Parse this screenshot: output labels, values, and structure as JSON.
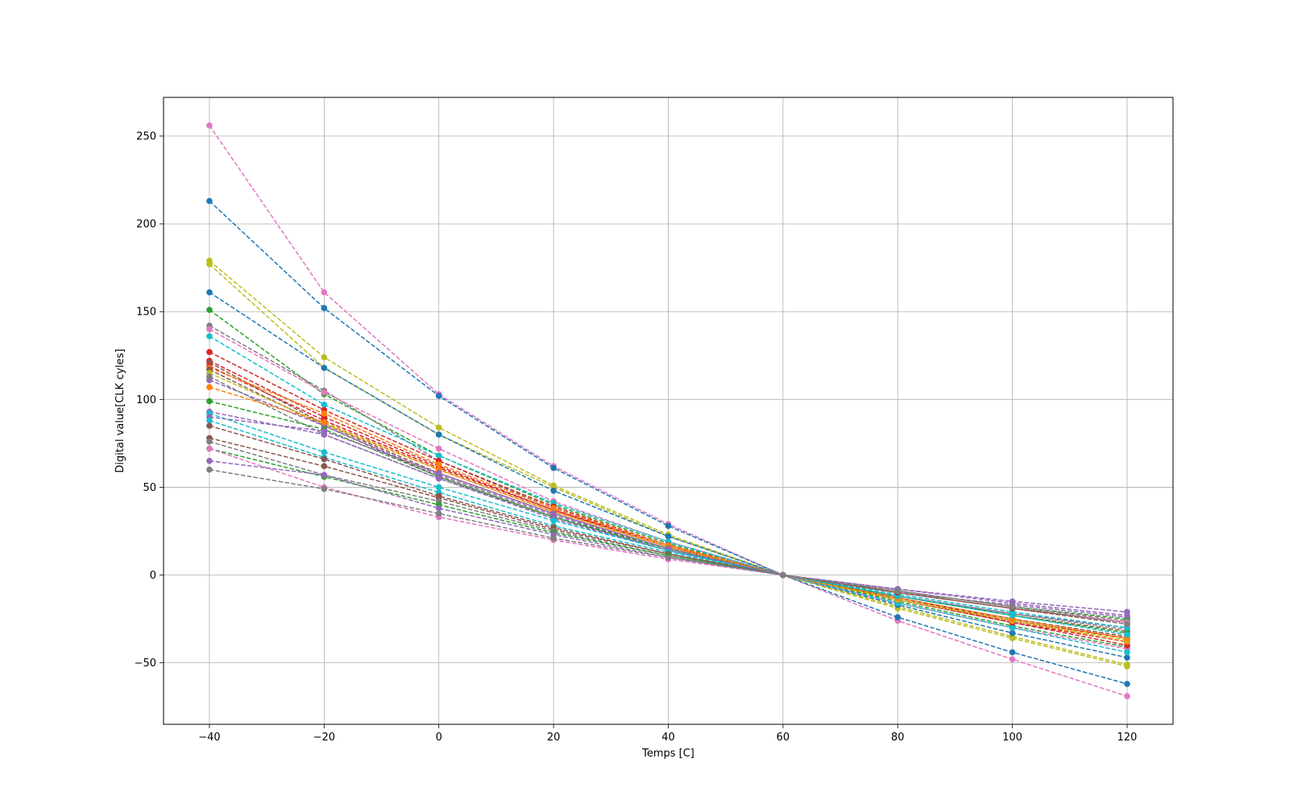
{
  "chart_data": {
    "type": "line",
    "title": "",
    "xlabel": "Temps [C]",
    "ylabel": "Digital value[CLK cyles]",
    "x": [
      -40,
      -20,
      0,
      20,
      40,
      60,
      80,
      100,
      120
    ],
    "xlim": [
      -48,
      128
    ],
    "ylim": [
      -85,
      272
    ],
    "xticks": [
      -40,
      -20,
      0,
      20,
      40,
      60,
      80,
      100,
      120
    ],
    "yticks": [
      -50,
      0,
      50,
      100,
      150,
      200,
      250
    ],
    "xtick_labels": [
      "−40",
      "−20",
      "0",
      "20",
      "40",
      "60",
      "80",
      "100",
      "120"
    ],
    "ytick_labels": [
      "−50",
      "0",
      "50",
      "100",
      "150",
      "200",
      "250"
    ],
    "grid": true,
    "line_style": "dashed",
    "marker": "circle",
    "series": [
      {
        "color": "#e377c2",
        "values": [
          256,
          161,
          103,
          62,
          29,
          0,
          -26,
          -48,
          -69
        ]
      },
      {
        "color": "#1f77b4",
        "values": [
          213,
          152,
          102,
          61,
          28,
          0,
          -24,
          -44,
          -62
        ]
      },
      {
        "color": "#bcbd22",
        "values": [
          179,
          124,
          84,
          51,
          23,
          0,
          -19,
          -36,
          -52
        ]
      },
      {
        "color": "#bcbd22",
        "values": [
          177,
          118,
          80,
          50,
          22,
          0,
          -18,
          -35,
          -51
        ]
      },
      {
        "color": "#1f77b4",
        "values": [
          161,
          118,
          80,
          48,
          22,
          0,
          -17,
          -33,
          -47
        ]
      },
      {
        "color": "#2ca02c",
        "values": [
          151,
          103,
          68,
          40,
          18,
          0,
          -15,
          -29,
          -41
        ]
      },
      {
        "color": "#7f7f7f",
        "values": [
          142,
          105,
          65,
          38,
          17,
          0,
          -14,
          -27,
          -38
        ]
      },
      {
        "color": "#e377c2",
        "values": [
          140,
          104,
          72,
          42,
          19,
          0,
          -16,
          -30,
          -42
        ]
      },
      {
        "color": "#17becf",
        "values": [
          136,
          97,
          68,
          41,
          19,
          0,
          -16,
          -30,
          -44
        ]
      },
      {
        "color": "#d62728",
        "values": [
          127,
          94,
          65,
          39,
          17,
          0,
          -14,
          -27,
          -38
        ]
      },
      {
        "color": "#d62728",
        "values": [
          122,
          90,
          62,
          37,
          16,
          0,
          -13,
          -26,
          -36
        ]
      },
      {
        "color": "#8c564b",
        "values": [
          121,
          86,
          58,
          35,
          15,
          0,
          -13,
          -25,
          -35
        ]
      },
      {
        "color": "#d62728",
        "values": [
          119,
          88,
          61,
          37,
          17,
          0,
          -14,
          -27,
          -40
        ]
      },
      {
        "color": "#ff7f0e",
        "values": [
          118,
          92,
          63,
          38,
          17,
          0,
          -14,
          -26,
          -38
        ]
      },
      {
        "color": "#8c564b",
        "values": [
          117,
          85,
          56,
          33,
          14,
          0,
          -12,
          -23,
          -32
        ]
      },
      {
        "color": "#bcbd22",
        "values": [
          115,
          86,
          60,
          36,
          16,
          0,
          -14,
          -26,
          -37
        ]
      },
      {
        "color": "#9467bd",
        "values": [
          111,
          85,
          57,
          34,
          15,
          0,
          -12,
          -22,
          -30
        ]
      },
      {
        "color": "#7f7f7f",
        "values": [
          113,
          80,
          55,
          33,
          14,
          0,
          -12,
          -22,
          -31
        ]
      },
      {
        "color": "#ff7f0e",
        "values": [
          107,
          87,
          60,
          36,
          16,
          0,
          -13,
          -25,
          -36
        ]
      },
      {
        "color": "#2ca02c",
        "values": [
          99,
          83,
          56,
          33,
          15,
          0,
          -12,
          -23,
          -33
        ]
      },
      {
        "color": "#9467bd",
        "values": [
          93,
          80,
          55,
          32,
          14,
          0,
          -10,
          -17,
          -24
        ]
      },
      {
        "color": "#17becf",
        "values": [
          92,
          70,
          50,
          31,
          14,
          0,
          -12,
          -23,
          -34
        ]
      },
      {
        "color": "#9467bd",
        "values": [
          90,
          82,
          58,
          35,
          15,
          0,
          -8,
          -15,
          -21
        ]
      },
      {
        "color": "#17becf",
        "values": [
          88,
          67,
          47,
          28,
          13,
          0,
          -11,
          -21,
          -30
        ]
      },
      {
        "color": "#8c564b",
        "values": [
          85,
          66,
          45,
          27,
          12,
          0,
          -10,
          -19,
          -27
        ]
      },
      {
        "color": "#8c564b",
        "values": [
          78,
          62,
          44,
          26,
          12,
          0,
          -10,
          -19,
          -28
        ]
      },
      {
        "color": "#7f7f7f",
        "values": [
          76,
          57,
          42,
          25,
          11,
          0,
          -9,
          -18,
          -26
        ]
      },
      {
        "color": "#2ca02c",
        "values": [
          72,
          56,
          40,
          24,
          11,
          0,
          -9,
          -18,
          -25
        ]
      },
      {
        "color": "#e377c2",
        "values": [
          72,
          50,
          33,
          20,
          9,
          0,
          -9,
          -18,
          -27
        ]
      },
      {
        "color": "#9467bd",
        "values": [
          65,
          57,
          38,
          23,
          10,
          0,
          -8,
          -16,
          -23
        ]
      },
      {
        "color": "#7f7f7f",
        "values": [
          60,
          49,
          35,
          21,
          10,
          0,
          -9,
          -18,
          -28
        ]
      }
    ]
  }
}
